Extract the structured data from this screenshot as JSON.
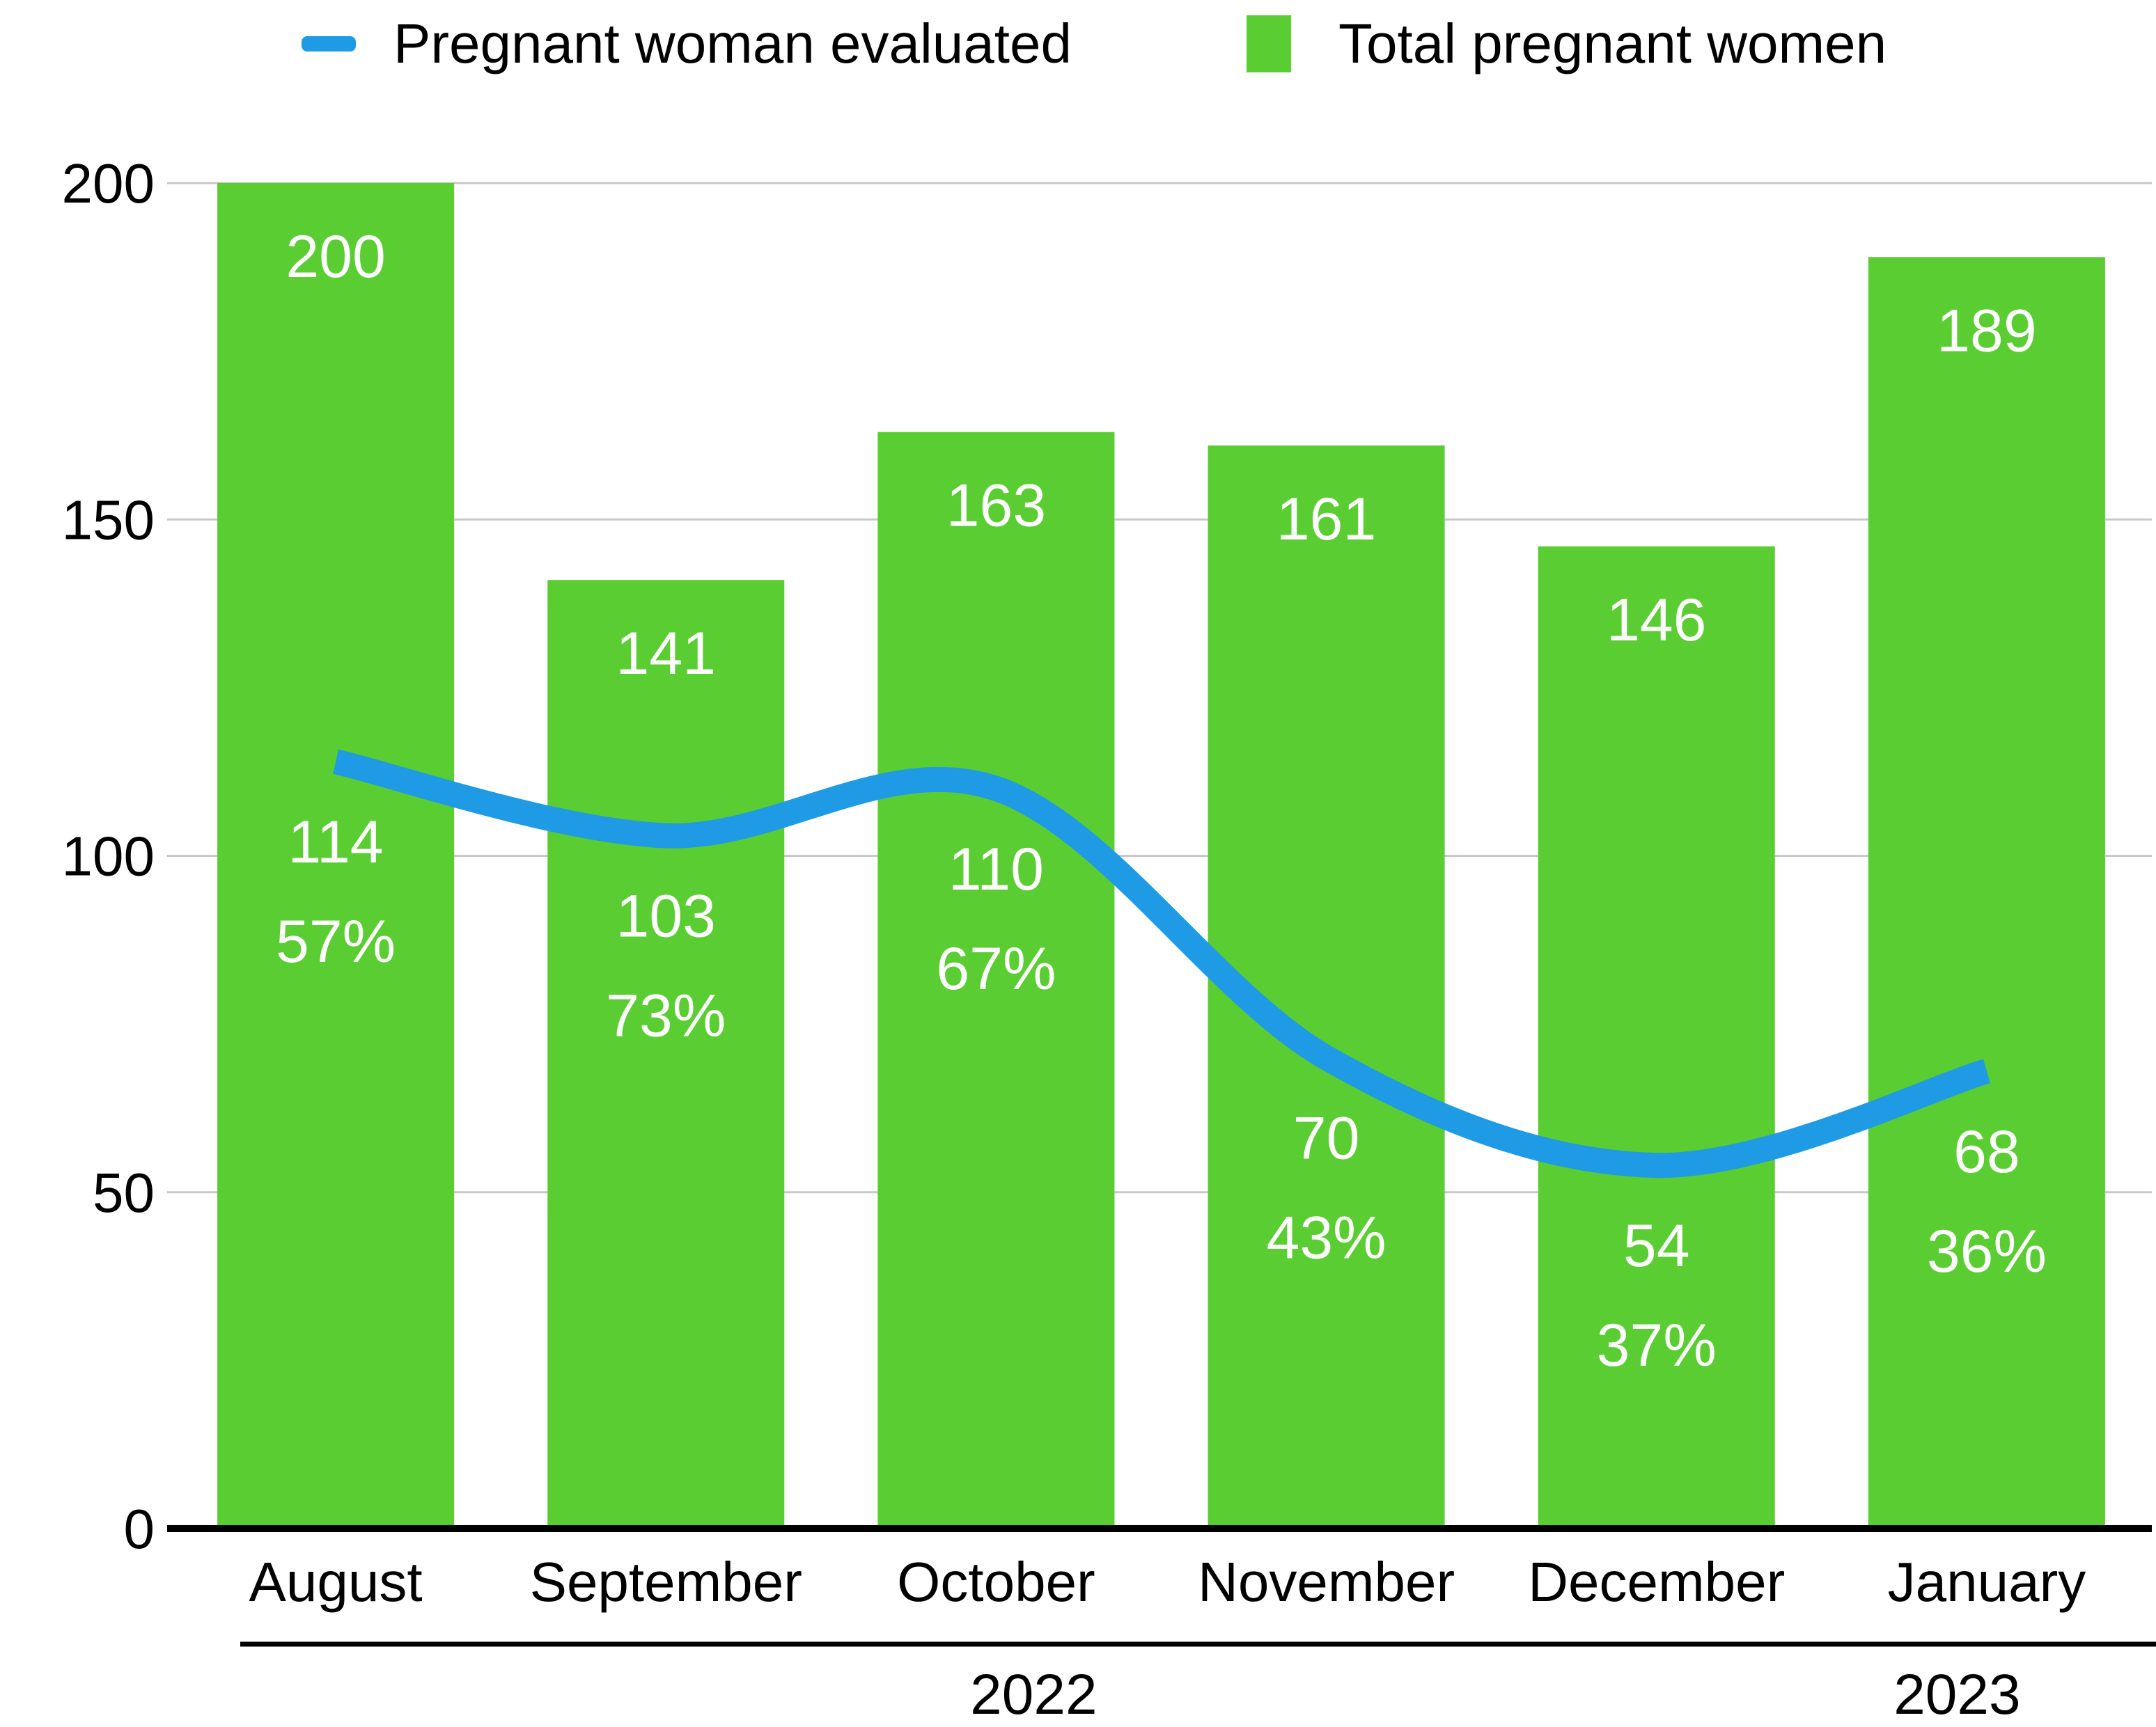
{
  "legend": {
    "items": [
      {
        "label": "Pregnant woman evaluated",
        "swatch": "line-dash",
        "color": "#1F9AE4"
      },
      {
        "label": "Total pregnant women",
        "swatch": "square",
        "color": "#5ACD32"
      }
    ]
  },
  "chart_data": {
    "type": "combo-bar-line",
    "title": "",
    "xlabel": "",
    "ylabel": "",
    "categories": [
      "August",
      "September",
      "October",
      "November",
      "December",
      "January"
    ],
    "year_groups": [
      {
        "label": "2022",
        "start_index": 0,
        "end_index": 4
      },
      {
        "label": "2023",
        "start_index": 5,
        "end_index": 5
      }
    ],
    "series": [
      {
        "name": "Total pregnant women",
        "type": "bar",
        "color": "#5ACD32",
        "values": [
          200,
          141,
          163,
          161,
          146,
          189
        ],
        "value_labels": [
          "200",
          "141",
          "163",
          "161",
          "146",
          "189"
        ]
      },
      {
        "name": "Pregnant woman evaluated",
        "type": "line",
        "color": "#1F9AE4",
        "values": [
          114,
          103,
          110,
          70,
          54,
          68
        ],
        "value_labels": [
          "114",
          "103",
          "110",
          "70",
          "54",
          "68"
        ],
        "percent_labels": [
          "57%",
          "73%",
          "67%",
          "43%",
          "37%",
          "36%"
        ]
      }
    ],
    "ylim": [
      0,
      200
    ],
    "yticks": [
      "0",
      "50",
      "100",
      "150",
      "200"
    ],
    "grid": true,
    "legend_position": "top"
  },
  "colors": {
    "bar": "#5ACD32",
    "line": "#1F9AE4",
    "gridline": "#C8C8C8",
    "axis": "#000000",
    "text": "#000000",
    "label_on_bar": "#FFFFFF"
  }
}
